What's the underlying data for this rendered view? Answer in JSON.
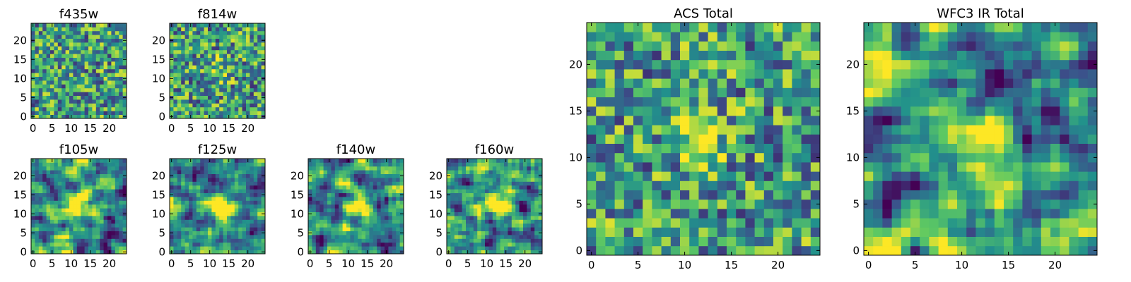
{
  "figure": {
    "type": "image-grid",
    "colormap": "viridis",
    "colormap_stops": [
      "#440154",
      "#3b528b",
      "#21918c",
      "#5ec962",
      "#fde725"
    ]
  },
  "chart_data": [
    {
      "type": "heatmap",
      "title": "f435w",
      "xlabel": "",
      "ylabel": "",
      "xlim": [
        0,
        25
      ],
      "ylim": [
        0,
        25
      ],
      "xticks": [
        0,
        5,
        10,
        15,
        20
      ],
      "yticks": [
        0,
        5,
        10,
        15,
        20
      ],
      "grid_size": [
        25,
        25
      ],
      "source_center": null,
      "noise": "speckled, no visible source"
    },
    {
      "type": "heatmap",
      "title": "f814w",
      "xlabel": "",
      "ylabel": "",
      "xlim": [
        0,
        25
      ],
      "ylim": [
        0,
        25
      ],
      "xticks": [
        0,
        5,
        10,
        15,
        20
      ],
      "yticks": [
        0,
        5,
        10,
        15,
        20
      ],
      "grid_size": [
        25,
        25
      ],
      "source_center": [
        12,
        12
      ],
      "noise": "speckled, faint central source"
    },
    {
      "type": "heatmap",
      "title": "f105w",
      "xlabel": "",
      "ylabel": "",
      "xlim": [
        0,
        25
      ],
      "ylim": [
        0,
        25
      ],
      "xticks": [
        0,
        5,
        10,
        15,
        20
      ],
      "yticks": [
        0,
        5,
        10,
        15,
        20
      ],
      "grid_size": [
        25,
        25
      ],
      "source_center": [
        12,
        13
      ],
      "noise": "smooth, bright central source"
    },
    {
      "type": "heatmap",
      "title": "f125w",
      "xlabel": "",
      "ylabel": "",
      "xlim": [
        0,
        25
      ],
      "ylim": [
        0,
        25
      ],
      "xticks": [
        0,
        5,
        10,
        15,
        20
      ],
      "yticks": [
        0,
        5,
        10,
        15,
        20
      ],
      "grid_size": [
        25,
        25
      ],
      "source_center": [
        12,
        12
      ],
      "noise": "smooth, bright central source"
    },
    {
      "type": "heatmap",
      "title": "f140w",
      "xlabel": "",
      "ylabel": "",
      "xlim": [
        0,
        25
      ],
      "ylim": [
        0,
        25
      ],
      "xticks": [
        0,
        5,
        10,
        15,
        20
      ],
      "yticks": [
        0,
        5,
        10,
        15,
        20
      ],
      "grid_size": [
        25,
        25
      ],
      "source_center": [
        12,
        12
      ],
      "noise": "smooth, bright central source"
    },
    {
      "type": "heatmap",
      "title": "f160w",
      "xlabel": "",
      "ylabel": "",
      "xlim": [
        0,
        25
      ],
      "ylim": [
        0,
        25
      ],
      "xticks": [
        0,
        5,
        10,
        15,
        20
      ],
      "yticks": [
        0,
        5,
        10,
        15,
        20
      ],
      "grid_size": [
        25,
        25
      ],
      "source_center": [
        12,
        12
      ],
      "noise": "smooth, bright central source"
    },
    {
      "type": "heatmap",
      "title": "ACS Total",
      "xlabel": "",
      "ylabel": "",
      "xlim": [
        0,
        25
      ],
      "ylim": [
        0,
        25
      ],
      "xticks": [
        0,
        5,
        10,
        15,
        20
      ],
      "yticks": [
        0,
        5,
        10,
        15,
        20
      ],
      "grid_size": [
        25,
        25
      ],
      "source_center": [
        12,
        12
      ],
      "noise": "speckled, faint central source"
    },
    {
      "type": "heatmap",
      "title": "WFC3 IR Total",
      "xlabel": "",
      "ylabel": "",
      "xlim": [
        0,
        25
      ],
      "ylim": [
        0,
        25
      ],
      "xticks": [
        0,
        5,
        10,
        15,
        20
      ],
      "yticks": [
        0,
        5,
        10,
        15,
        20
      ],
      "grid_size": [
        25,
        25
      ],
      "source_center": [
        12,
        12
      ],
      "noise": "smooth, bright central source"
    }
  ]
}
